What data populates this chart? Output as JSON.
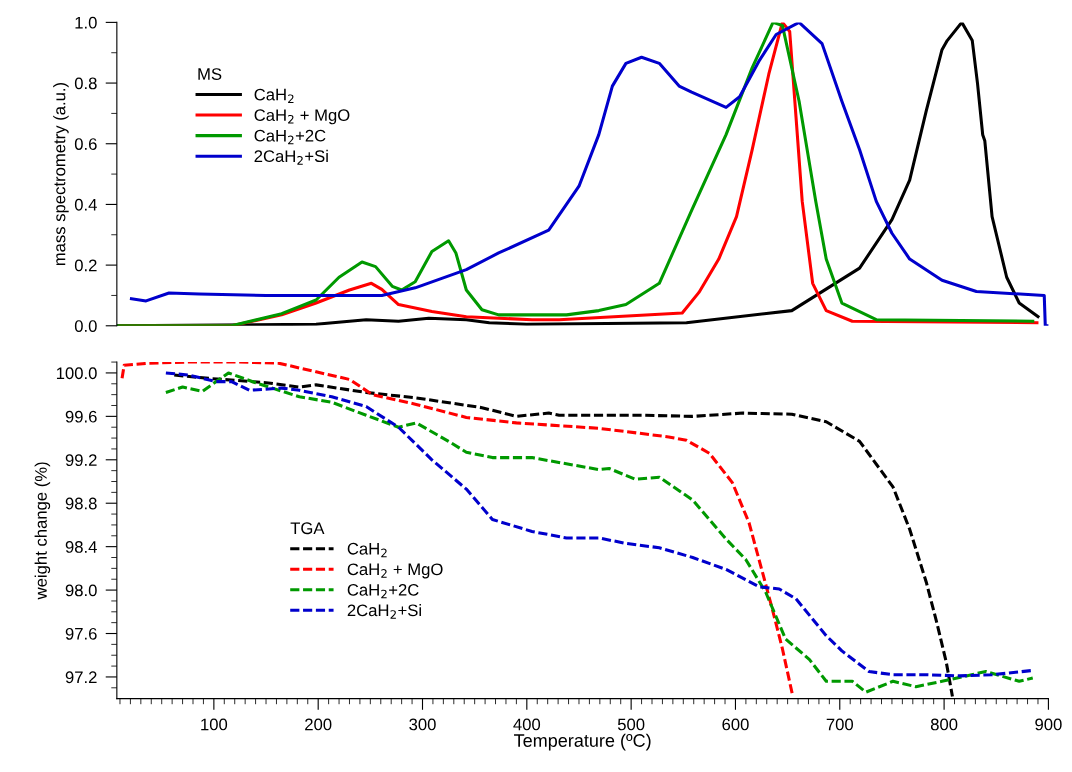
{
  "chart_data": [
    {
      "type": "line",
      "ylabel": "mass spectrometry (a.u.)",
      "legend_title": "MS",
      "legend": "top left",
      "line_style": "solid",
      "marker": "none",
      "grid": false,
      "tick_labels": "y",
      "xlim": [
        7,
        900
      ],
      "ylim": [
        0,
        1.0
      ],
      "yticks": [
        {
          "value": 0,
          "label": "0.0"
        },
        {
          "value": 0.1,
          "label": null
        },
        {
          "value": 0.2,
          "label": "0.2"
        },
        {
          "value": 0.3,
          "label": null
        },
        {
          "value": 0.4,
          "label": "0.4"
        },
        {
          "value": 0.5,
          "label": null
        },
        {
          "value": 0.6,
          "label": "0.6"
        },
        {
          "value": 0.7,
          "label": null
        },
        {
          "value": 0.8,
          "label": "0.8"
        },
        {
          "value": 0.9,
          "label": null
        },
        {
          "value": 1.0,
          "label": "1.0"
        }
      ],
      "series": [
        {
          "name": "CaH$_{2}$",
          "color": "#000000",
          "x": [
            8,
            198,
            246,
            277,
            306,
            342,
            364,
            400,
            553,
            654,
            719,
            750,
            767,
            783,
            798,
            803,
            817,
            827,
            832,
            837,
            839,
            846,
            860,
            872,
            890
          ],
          "values": [
            0.0,
            0.005,
            0.02,
            0.015,
            0.025,
            0.02,
            0.01,
            0.005,
            0.01,
            0.05,
            0.19,
            0.35,
            0.48,
            0.71,
            0.91,
            0.94,
            1.0,
            0.94,
            0.8,
            0.63,
            0.61,
            0.36,
            0.16,
            0.075,
            0.03
          ]
        },
        {
          "name": "CaH$_{2}$ + MgO",
          "color": "#ff0000",
          "x": [
            10,
            117,
            165,
            198,
            230,
            251,
            261,
            277,
            309,
            342,
            405,
            431,
            549,
            565,
            584,
            601,
            616,
            632,
            645,
            652,
            658,
            664,
            674,
            687,
            712,
            889
          ],
          "values": [
            0.0,
            0.0,
            0.036,
            0.075,
            0.118,
            0.14,
            0.12,
            0.07,
            0.047,
            0.03,
            0.02,
            0.02,
            0.042,
            0.11,
            0.22,
            0.36,
            0.58,
            0.83,
            1.0,
            0.97,
            0.69,
            0.41,
            0.14,
            0.05,
            0.015,
            0.01
          ]
        },
        {
          "name": "CaH$_{2}$+2C",
          "color": "#009900",
          "x": [
            8,
            117,
            165,
            198,
            220,
            242,
            255,
            271,
            280,
            293,
            309,
            325,
            332,
            342,
            357,
            373,
            438,
            469,
            495,
            527,
            558,
            591,
            616,
            636,
            645,
            661,
            677,
            687,
            702,
            735,
            885
          ],
          "values": [
            0.0,
            0.0,
            0.04,
            0.085,
            0.16,
            0.21,
            0.195,
            0.13,
            0.118,
            0.145,
            0.245,
            0.28,
            0.24,
            0.118,
            0.053,
            0.036,
            0.036,
            0.05,
            0.07,
            0.14,
            0.38,
            0.63,
            0.85,
            1.0,
            0.99,
            0.74,
            0.41,
            0.22,
            0.075,
            0.02,
            0.015
          ]
        },
        {
          "name": "2CaH$_{2}$+Si",
          "color": "#0000cc",
          "x": [
            21,
            35,
            57,
            86,
            150,
            261,
            293,
            342,
            373,
            421,
            450,
            469,
            482,
            495,
            510,
            527,
            546,
            558,
            591,
            604,
            623,
            639,
            661,
            683,
            702,
            719,
            735,
            750,
            767,
            798,
            831,
            896,
            897,
            900
          ],
          "values": [
            0.089,
            0.082,
            0.108,
            0.105,
            0.1,
            0.1,
            0.125,
            0.185,
            0.24,
            0.315,
            0.46,
            0.63,
            0.79,
            0.865,
            0.885,
            0.865,
            0.79,
            0.77,
            0.72,
            0.755,
            0.875,
            0.96,
            1.0,
            0.93,
            0.74,
            0.58,
            0.41,
            0.305,
            0.22,
            0.15,
            0.113,
            0.1,
            0.0,
            0.0
          ]
        }
      ]
    },
    {
      "type": "line",
      "xlabel": "Temperature (ºC)",
      "ylabel": "weight change (%)",
      "legend_title": "TGA",
      "legend": "center left",
      "line_style": "dashed",
      "marker": "none",
      "grid": false,
      "xlim": [
        7,
        900
      ],
      "ylim": [
        97.0,
        100.1
      ],
      "xticks": [
        {
          "value": 10,
          "label": null
        },
        {
          "value": 20,
          "label": null
        },
        {
          "value": 30,
          "label": null
        },
        {
          "value": 40,
          "label": null
        },
        {
          "value": 50,
          "label": null
        },
        {
          "value": 60,
          "label": null
        },
        {
          "value": 70,
          "label": null
        },
        {
          "value": 80,
          "label": null
        },
        {
          "value": 90,
          "label": null
        },
        100,
        {
          "value": 110,
          "label": null
        },
        {
          "value": 120,
          "label": null
        },
        {
          "value": 130,
          "label": null
        },
        {
          "value": 140,
          "label": null
        },
        {
          "value": 150,
          "label": null
        },
        {
          "value": 160,
          "label": null
        },
        {
          "value": 170,
          "label": null
        },
        {
          "value": 180,
          "label": null
        },
        {
          "value": 190,
          "label": null
        },
        200,
        {
          "value": 210,
          "label": null
        },
        {
          "value": 220,
          "label": null
        },
        {
          "value": 230,
          "label": null
        },
        {
          "value": 240,
          "label": null
        },
        {
          "value": 250,
          "label": null
        },
        {
          "value": 260,
          "label": null
        },
        {
          "value": 270,
          "label": null
        },
        {
          "value": 280,
          "label": null
        },
        {
          "value": 290,
          "label": null
        },
        300,
        {
          "value": 310,
          "label": null
        },
        {
          "value": 320,
          "label": null
        },
        {
          "value": 330,
          "label": null
        },
        {
          "value": 340,
          "label": null
        },
        {
          "value": 350,
          "label": null
        },
        {
          "value": 360,
          "label": null
        },
        {
          "value": 370,
          "label": null
        },
        {
          "value": 380,
          "label": null
        },
        {
          "value": 390,
          "label": null
        },
        400,
        {
          "value": 410,
          "label": null
        },
        {
          "value": 420,
          "label": null
        },
        {
          "value": 430,
          "label": null
        },
        {
          "value": 440,
          "label": null
        },
        {
          "value": 450,
          "label": null
        },
        {
          "value": 460,
          "label": null
        },
        {
          "value": 470,
          "label": null
        },
        {
          "value": 480,
          "label": null
        },
        {
          "value": 490,
          "label": null
        },
        500,
        {
          "value": 510,
          "label": null
        },
        {
          "value": 520,
          "label": null
        },
        {
          "value": 530,
          "label": null
        },
        {
          "value": 540,
          "label": null
        },
        {
          "value": 550,
          "label": null
        },
        {
          "value": 560,
          "label": null
        },
        {
          "value": 570,
          "label": null
        },
        {
          "value": 580,
          "label": null
        },
        {
          "value": 590,
          "label": null
        },
        600,
        {
          "value": 610,
          "label": null
        },
        {
          "value": 620,
          "label": null
        },
        {
          "value": 630,
          "label": null
        },
        {
          "value": 640,
          "label": null
        },
        {
          "value": 650,
          "label": null
        },
        {
          "value": 660,
          "label": null
        },
        {
          "value": 670,
          "label": null
        },
        {
          "value": 680,
          "label": null
        },
        {
          "value": 690,
          "label": null
        },
        700,
        {
          "value": 710,
          "label": null
        },
        {
          "value": 720,
          "label": null
        },
        {
          "value": 730,
          "label": null
        },
        {
          "value": 740,
          "label": null
        },
        {
          "value": 750,
          "label": null
        },
        {
          "value": 760,
          "label": null
        },
        {
          "value": 770,
          "label": null
        },
        {
          "value": 780,
          "label": null
        },
        {
          "value": 790,
          "label": null
        },
        800,
        {
          "value": 810,
          "label": null
        },
        {
          "value": 820,
          "label": null
        },
        {
          "value": 830,
          "label": null
        },
        {
          "value": 840,
          "label": null
        },
        {
          "value": 850,
          "label": null
        },
        {
          "value": 860,
          "label": null
        },
        {
          "value": 870,
          "label": null
        },
        {
          "value": 880,
          "label": null
        },
        {
          "value": 890,
          "label": null
        },
        900
      ],
      "yticks": [
        {
          "value": 97.1,
          "label": null
        },
        {
          "value": 97.2,
          "label": "97.2"
        },
        {
          "value": 97.3,
          "label": null
        },
        {
          "value": 97.4,
          "label": null
        },
        {
          "value": 97.5,
          "label": null
        },
        {
          "value": 97.6,
          "label": "97.6"
        },
        {
          "value": 97.7,
          "label": null
        },
        {
          "value": 97.8,
          "label": null
        },
        {
          "value": 97.9,
          "label": null
        },
        {
          "value": 98.0,
          "label": "98.0"
        },
        {
          "value": 98.1,
          "label": null
        },
        {
          "value": 98.2,
          "label": null
        },
        {
          "value": 98.3,
          "label": null
        },
        {
          "value": 98.4,
          "label": "98.4"
        },
        {
          "value": 98.5,
          "label": null
        },
        {
          "value": 98.6,
          "label": null
        },
        {
          "value": 98.7,
          "label": null
        },
        {
          "value": 98.8,
          "label": "98.8"
        },
        {
          "value": 98.9,
          "label": null
        },
        {
          "value": 99.0,
          "label": null
        },
        {
          "value": 99.1,
          "label": null
        },
        {
          "value": 99.2,
          "label": "99.2"
        },
        {
          "value": 99.3,
          "label": null
        },
        {
          "value": 99.4,
          "label": null
        },
        {
          "value": 99.5,
          "label": null
        },
        {
          "value": 99.6,
          "label": "99.6"
        },
        {
          "value": 99.7,
          "label": null
        },
        {
          "value": 99.8,
          "label": null
        },
        {
          "value": 99.9,
          "label": null
        },
        {
          "value": 100.0,
          "label": "100.0"
        },
        {
          "value": 100.1,
          "label": null
        }
      ],
      "series": [
        {
          "name": "CaH$_{2}$",
          "color": "#000000",
          "x": [
            62,
            95,
            150,
            182,
            198,
            246,
            294,
            357,
            390,
            421,
            431,
            511,
            559,
            607,
            654,
            687,
            719,
            751,
            767,
            783,
            793,
            802,
            808
          ],
          "values": [
            99.98,
            99.95,
            99.91,
            99.87,
            99.89,
            99.82,
            99.77,
            99.68,
            99.6,
            99.63,
            99.61,
            99.61,
            99.6,
            99.63,
            99.62,
            99.55,
            99.37,
            98.95,
            98.56,
            98.07,
            97.7,
            97.34,
            97.02
          ]
        },
        {
          "name": "CaH$_{2}$ + MgO",
          "color": "#ff0000",
          "x": [
            12,
            14,
            38,
            76,
            124,
            162,
            198,
            230,
            252,
            294,
            342,
            390,
            469,
            495,
            536,
            553,
            575,
            597,
            613,
            626,
            636,
            645,
            655
          ],
          "values": [
            99.95,
            100.07,
            100.09,
            100.1,
            100.1,
            100.09,
            100.01,
            99.94,
            99.8,
            99.71,
            99.59,
            99.54,
            99.49,
            99.46,
            99.41,
            99.38,
            99.26,
            98.99,
            98.62,
            98.16,
            97.8,
            97.46,
            97.02
          ]
        },
        {
          "name": "CaH$_{2}$+2C",
          "color": "#009900",
          "x": [
            54,
            70,
            89,
            114,
            140,
            182,
            213,
            246,
            277,
            294,
            325,
            342,
            367,
            405,
            469,
            479,
            504,
            527,
            559,
            591,
            610,
            629,
            648,
            671,
            687,
            712,
            725,
            751,
            773,
            798,
            840,
            872,
            885
          ],
          "values": [
            99.82,
            99.87,
            99.83,
            100.0,
            99.91,
            99.78,
            99.73,
            99.61,
            99.5,
            99.54,
            99.37,
            99.27,
            99.22,
            99.22,
            99.11,
            99.12,
            99.02,
            99.04,
            98.83,
            98.47,
            98.28,
            97.98,
            97.55,
            97.36,
            97.16,
            97.16,
            97.06,
            97.16,
            97.11,
            97.16,
            97.25,
            97.16,
            97.19
          ]
        },
        {
          "name": "2CaH$_{2}$+Si",
          "color": "#0000cc",
          "x": [
            54,
            76,
            102,
            117,
            134,
            165,
            182,
            213,
            246,
            277,
            309,
            342,
            367,
            405,
            438,
            469,
            495,
            527,
            559,
            591,
            623,
            642,
            658,
            687,
            702,
            728,
            751,
            783,
            815,
            846,
            885
          ],
          "values": [
            100.0,
            99.98,
            99.92,
            99.92,
            99.84,
            99.86,
            99.84,
            99.78,
            99.69,
            99.5,
            99.2,
            98.93,
            98.65,
            98.54,
            98.48,
            98.48,
            98.43,
            98.39,
            98.3,
            98.19,
            98.03,
            98.01,
            97.92,
            97.58,
            97.44,
            97.25,
            97.22,
            97.22,
            97.21,
            97.22,
            97.26
          ]
        }
      ]
    }
  ]
}
